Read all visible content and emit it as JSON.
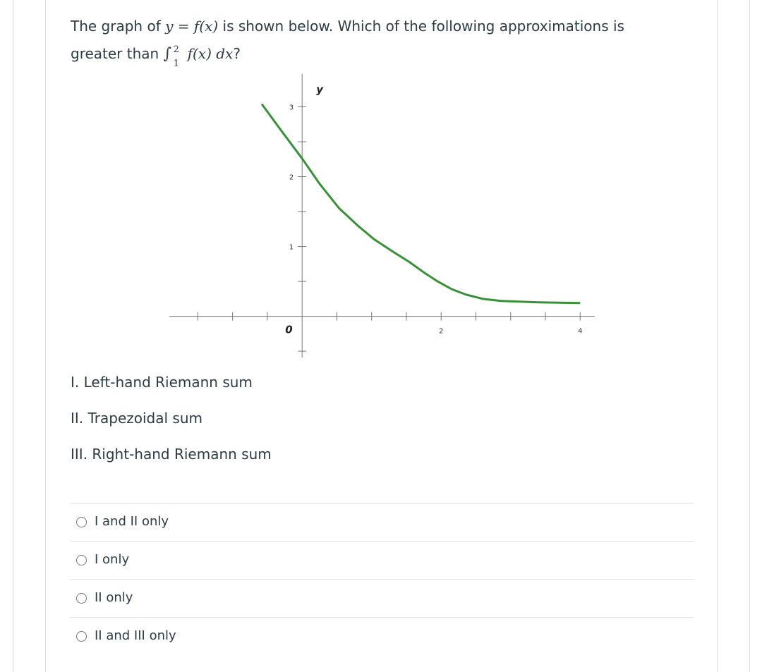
{
  "question": {
    "before": "The graph of",
    "math": "y = f(x)",
    "after": "is shown below. Which of the following approximations is",
    "line2": "greater than",
    "integral": "∫",
    "lower": "1",
    "upper": "2",
    "integrand": "f(x) dx",
    "end": "?"
  },
  "graph": {
    "y_label": "y",
    "origin_label": 0,
    "color": "#3a8f3a",
    "xlim": [
      -1.91,
      4.21
    ],
    "ylim": [
      -0.59,
      3.47
    ],
    "xticks": [
      2,
      4
    ],
    "xminor": [
      -1.5,
      -1,
      -0.5,
      0.5,
      1,
      1.5,
      2.5,
      3,
      3.5
    ],
    "yticks": [
      1,
      2,
      3
    ],
    "yminor": [
      -0.5,
      0.5,
      1.5,
      2.5
    ],
    "x": [
      -0.58,
      -0.3,
      0,
      0.25,
      0.53,
      0.8,
      1.04,
      1.3,
      1.54,
      1.75,
      1.95,
      2.15,
      2.36,
      2.6,
      2.86,
      3.4,
      4.0
    ],
    "y": [
      3.04,
      2.66,
      2.26,
      1.9,
      1.55,
      1.3,
      1.1,
      0.93,
      0.78,
      0.63,
      0.5,
      0.39,
      0.31,
      0.25,
      0.22,
      0.2,
      0.19
    ]
  },
  "statements": [
    "I. Left-hand Riemann sum",
    "II. Trapezoidal sum",
    "III. Right-hand Riemann sum"
  ],
  "options": [
    "I and II only",
    "I only",
    "II only",
    "II and III only"
  ]
}
